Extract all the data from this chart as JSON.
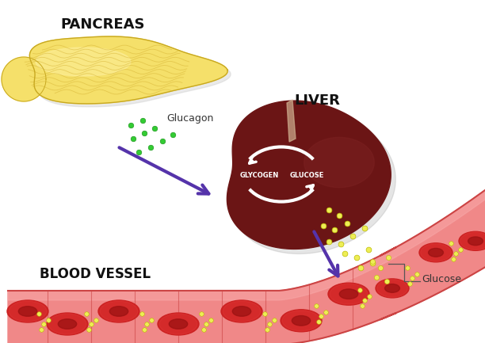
{
  "bg_color": "#ffffff",
  "pancreas_color": "#f5e06a",
  "pancreas_highlight": "#fef0a0",
  "pancreas_shadow": "#d4b830",
  "liver_color": "#6b1515",
  "liver_right_lobe": "#7a2020",
  "liver_stripe": "#c8a878",
  "liver_shadow": "#888888",
  "blood_vessel_color": "#f08888",
  "blood_vessel_border": "#cc4444",
  "blood_vessel_light": "#f8aaaa",
  "rbc_color": "#cc2222",
  "rbc_dark": "#991111",
  "rbc_highlight": "#ee4444",
  "arrow_color": "#5533aa",
  "glucagon_dot_color": "#33cc33",
  "glucagon_dot_edge": "#229922",
  "glucose_dot_color": "#eeee55",
  "glucose_dot_edge": "#bbbb00",
  "white": "#ffffff",
  "text_dark": "#111111",
  "title_pancreas": "PANCREAS",
  "title_liver": "LIVER",
  "title_blood": "BLOOD VESSEL",
  "label_glucagon": "Glucagon",
  "label_glucose": "Glucose",
  "label_glycogen": "GLYCOGEN",
  "label_glucose2": "GLUCOSE"
}
